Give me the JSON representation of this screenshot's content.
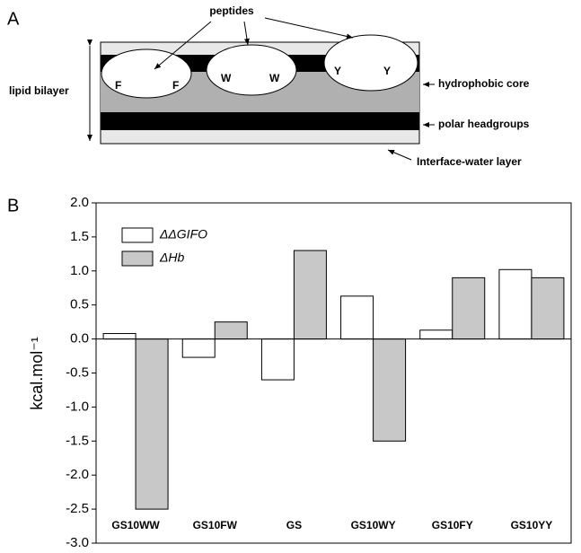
{
  "diagram": {
    "panel_label": "A",
    "peptides_label": "peptides",
    "residues": [
      "F",
      "F",
      "W",
      "W",
      "Y",
      "Y"
    ],
    "left_label": "lipid bilayer",
    "right_labels": [
      "hydrophobic core",
      "polar headgroups",
      "Interface-water layer"
    ]
  },
  "chart_data": {
    "type": "bar",
    "panel_label": "B",
    "ylabel": "kcal.mol⁻¹",
    "categories": [
      "GS10WW",
      "GS10FW",
      "GS",
      "GS10WY",
      "GS10FY",
      "GS10YY"
    ],
    "series": [
      {
        "name": "ΔΔGIFO",
        "color": "#ffffff",
        "values": [
          0.08,
          -0.27,
          -0.6,
          0.63,
          0.13,
          1.02
        ]
      },
      {
        "name": "ΔHb",
        "color": "#c8c8c8",
        "values": [
          -2.5,
          0.25,
          1.3,
          -1.5,
          0.9,
          0.9
        ]
      }
    ],
    "ylim": [
      -3.0,
      2.0
    ],
    "yticks": [
      {
        "value": -3.0,
        "label": "-3.0"
      },
      {
        "value": -2.5,
        "label": "-2.5"
      },
      {
        "value": -2.0,
        "label": "-2.0"
      },
      {
        "value": -1.5,
        "label": "-1.5"
      },
      {
        "value": -1.0,
        "label": "-1.0"
      },
      {
        "value": -0.5,
        "label": "-0.5"
      },
      {
        "value": 0.0,
        "label": "0.0"
      },
      {
        "value": 0.5,
        "label": "0.5"
      },
      {
        "value": 1.0,
        "label": "1.0"
      },
      {
        "value": 1.5,
        "label": "1.5"
      },
      {
        "value": 2.0,
        "label": "2.0"
      }
    ],
    "legend": "upper left",
    "grid": false
  }
}
